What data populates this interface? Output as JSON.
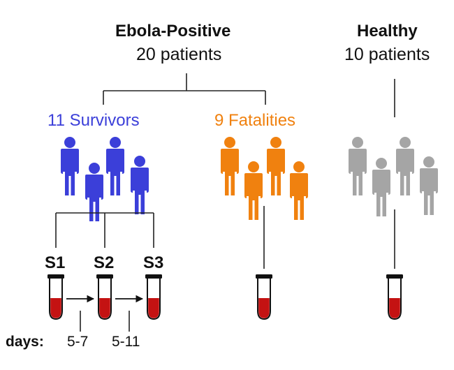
{
  "groups": {
    "ebola": {
      "title": "Ebola-Positive",
      "count": "20 patients"
    },
    "healthy": {
      "title": "Healthy",
      "count": "10 patients"
    },
    "survivors": {
      "label": "11 Survivors",
      "color": "#3b3fd9"
    },
    "fatalities": {
      "label": "9 Fatalities",
      "color": "#f0810f"
    },
    "healthy_people": {
      "color": "#a5a5a5"
    }
  },
  "samples": {
    "s1": "S1",
    "s2": "S2",
    "s3": "S3"
  },
  "timeline": {
    "label": "days:",
    "interval1": "5-7",
    "interval2": "5-11"
  },
  "colors": {
    "line": "#222222",
    "blood": "#c41212",
    "cap": "#111111"
  },
  "icons": {
    "person": "person-icon",
    "tube": "test-tube-icon",
    "arrow": "arrow-right-icon"
  }
}
